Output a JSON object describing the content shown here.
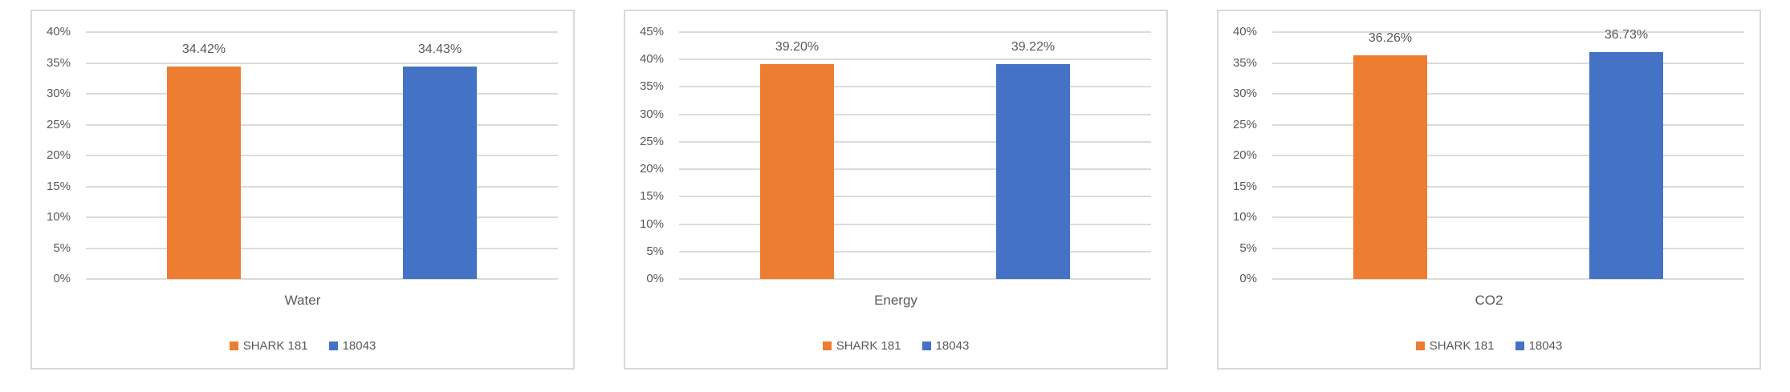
{
  "colors": {
    "series_orange": "#ED7D31",
    "series_blue": "#4472C4",
    "gridline": "#DBDBDB",
    "axis_text": "#595959",
    "chart_border": "#D9D9D9",
    "background": "#FFFFFF"
  },
  "chart_data": [
    {
      "type": "bar",
      "title": "",
      "xlabel": "Water",
      "category": "Water",
      "categories": [
        "Water"
      ],
      "series": [
        {
          "name": "SHARK 181",
          "value": 34.42,
          "label": "34.42%",
          "color": "#ED7D31"
        },
        {
          "name": "18043",
          "value": 34.43,
          "label": "34.43%",
          "color": "#4472C4"
        }
      ],
      "ylim": [
        0,
        40
      ],
      "ytick_step": 5,
      "ytick_labels": [
        "40%",
        "35%",
        "30%",
        "25%",
        "20%",
        "15%",
        "10%",
        "5%",
        "0%"
      ],
      "grid": true,
      "legend_position": "bottom"
    },
    {
      "type": "bar",
      "title": "",
      "xlabel": "Energy",
      "category": "Energy",
      "categories": [
        "Energy"
      ],
      "series": [
        {
          "name": "SHARK 181",
          "value": 39.2,
          "label": "39.20%",
          "color": "#ED7D31"
        },
        {
          "name": "18043",
          "value": 39.22,
          "label": "39.22%",
          "color": "#4472C4"
        }
      ],
      "ylim": [
        0,
        45
      ],
      "ytick_step": 5,
      "ytick_labels": [
        "45%",
        "40%",
        "35%",
        "30%",
        "25%",
        "20%",
        "15%",
        "10%",
        "5%",
        "0%"
      ],
      "grid": true,
      "legend_position": "bottom"
    },
    {
      "type": "bar",
      "title": "",
      "xlabel": "CO2",
      "category": "CO2",
      "categories": [
        "CO2"
      ],
      "series": [
        {
          "name": "SHARK 181",
          "value": 36.26,
          "label": "36.26%",
          "color": "#ED7D31"
        },
        {
          "name": "18043",
          "value": 36.73,
          "label": "36.73%",
          "color": "#4472C4"
        }
      ],
      "ylim": [
        0,
        40
      ],
      "ytick_step": 5,
      "ytick_labels": [
        "40%",
        "35%",
        "30%",
        "25%",
        "20%",
        "15%",
        "10%",
        "5%",
        "0%"
      ],
      "grid": true,
      "legend_position": "bottom"
    }
  ]
}
